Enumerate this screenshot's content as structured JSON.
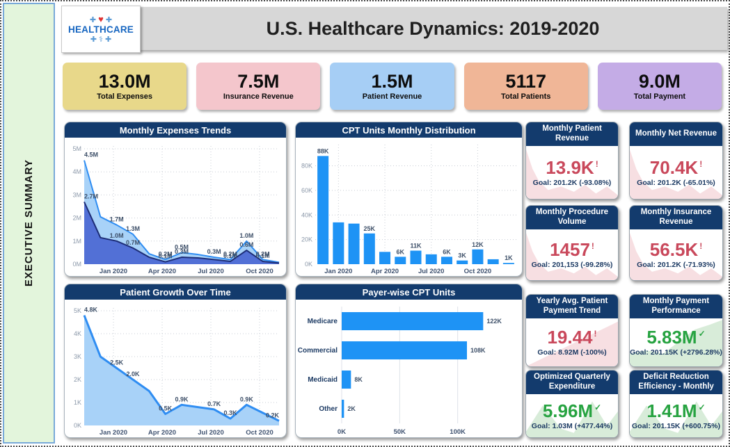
{
  "sidebar": {
    "label": "EXECUTIVE SUMMARY"
  },
  "header": {
    "title": "U.S. Healthcare Dynamics: 2019-2020",
    "logo": {
      "text": "HEALTHCARE",
      "icons_top_left": "✚",
      "icon_heart": "♥",
      "icons_top_right": "✚",
      "icons_bottom": "✚ ⚕ ✚"
    }
  },
  "kpi_cards": [
    {
      "value": "13.0M",
      "label": "Total Expenses",
      "color": "#e8d88a"
    },
    {
      "value": "7.5M",
      "label": "Insurance Revenue",
      "color": "#f4c6cc"
    },
    {
      "value": "1.5M",
      "label": "Patient Revenue",
      "color": "#a6cef5"
    },
    {
      "value": "5117",
      "label": "Total Patients",
      "color": "#f0b697"
    },
    {
      "value": "9.0M",
      "label": "Total Payment",
      "color": "#c4ace6"
    }
  ],
  "goal_cards": [
    {
      "title": "Monthly Patient Revenue",
      "value": "13.9K",
      "status": "!",
      "goal": "Goal: 201.2K (-93.08%)",
      "tone": "bad",
      "spark": "decay"
    },
    {
      "title": "Monthly Net Revenue",
      "value": "70.4K",
      "status": "!",
      "goal": "Goal: 201.2K (-65.01%)",
      "tone": "bad",
      "spark": "decay"
    },
    {
      "title": "Monthly Procedure Volume",
      "value": "1457",
      "status": "!",
      "goal": "Goal: 201,153 (-99.28%)",
      "tone": "bad",
      "spark": "decay"
    },
    {
      "title": "Monthly Insurance Revenue",
      "value": "56.5K",
      "status": "!",
      "goal": "Goal: 201.2K (-71.93%)",
      "tone": "bad",
      "spark": "decay"
    },
    {
      "title": "Yearly Avg. Patient Payment Trend",
      "value": "19.44",
      "status": "!",
      "goal": "Goal: 8.92M (-100%)",
      "tone": "bad",
      "spark": "rise-triangle"
    },
    {
      "title": "Monthly Payment Performance",
      "value": "5.83M",
      "status": "✓",
      "goal": "Goal: 201.15K (+2796.28%)",
      "tone": "good",
      "spark": "rise"
    },
    {
      "title": "Optimized Quarterly Expenditure",
      "value": "5.96M",
      "status": "✓",
      "goal": "Goal: 1.03M (+477.44%)",
      "tone": "good",
      "spark": "mountain"
    },
    {
      "title": "Deficit Reduction Efficiency - Monthly",
      "value": "1.41M",
      "status": "✓",
      "goal": "Goal: 201.15K (+600.75%)",
      "tone": "good",
      "spark": "mountain"
    }
  ],
  "chart_data": [
    {
      "type": "area",
      "title": "Monthly Expenses Trends",
      "x": [
        "Dec 2019",
        "Jan 2020",
        "Feb 2020",
        "Mar 2020",
        "Apr 2020",
        "May 2020",
        "Jun 2020",
        "Jul 2020",
        "Aug 2020",
        "Sep 2020",
        "Oct 2020",
        "Nov 2020",
        "Dec 2020"
      ],
      "xticks": [
        {
          "pos": 1.8,
          "label": "Jan 2020"
        },
        {
          "pos": 4.8,
          "label": "Apr 2020"
        },
        {
          "pos": 7.8,
          "label": "Jul 2020"
        },
        {
          "pos": 10.8,
          "label": "Oct 2020"
        }
      ],
      "ylim": [
        0,
        5
      ],
      "yticks": [
        {
          "v": 0,
          "label": "0M"
        },
        {
          "v": 1,
          "label": "1M"
        },
        {
          "v": 2,
          "label": "2M"
        },
        {
          "v": 3,
          "label": "3M"
        },
        {
          "v": 4,
          "label": "4M"
        },
        {
          "v": 5,
          "label": "5M"
        }
      ],
      "series": [
        {
          "name": "light-blue",
          "fill": "#a8d2f8",
          "line": "#2f8df2",
          "width": 2,
          "values": [
            4.5,
            2.05,
            1.7,
            1.3,
            0.45,
            0.2,
            0.5,
            0.42,
            0.3,
            0.2,
            1.0,
            0.2,
            0.08
          ],
          "labels": [
            "4.5M",
            null,
            "1.7M",
            "1.3M",
            null,
            "0.2M",
            "0.5M",
            null,
            "0.3M",
            "0.2M",
            "1.0M",
            "0.2M",
            null
          ]
        },
        {
          "name": "dark-blue",
          "fill": "#5270d6",
          "line": "#1d2d76",
          "width": 2,
          "values": [
            2.7,
            1.15,
            1.0,
            0.7,
            0.3,
            0.1,
            0.3,
            0.27,
            0.2,
            0.12,
            0.6,
            0.12,
            0.05
          ],
          "labels": [
            "2.7M",
            null,
            "1.0M",
            "0.7M",
            null,
            "0.1M",
            "0.3M",
            null,
            null,
            "0.1M",
            "0.6M",
            "0.1M",
            null
          ]
        }
      ]
    },
    {
      "type": "bar",
      "title": "CPT Units Monthly Distribution",
      "x": [
        "Dec 2019",
        "Jan 2020",
        "Feb 2020",
        "Mar 2020",
        "Apr 2020",
        "May 2020",
        "Jun 2020",
        "Jul 2020",
        "Aug 2020",
        "Sep 2020",
        "Oct 2020",
        "Nov 2020",
        "Dec 2020"
      ],
      "xticks": [
        {
          "pos": 1,
          "label": "Jan 2020"
        },
        {
          "pos": 4,
          "label": "Apr 2020"
        },
        {
          "pos": 7,
          "label": "Jul 2020"
        },
        {
          "pos": 10,
          "label": "Oct 2020"
        }
      ],
      "values": [
        88,
        34,
        33,
        25,
        10,
        6,
        11,
        8,
        6,
        3,
        12,
        4,
        1
      ],
      "labels": [
        "88K",
        null,
        null,
        "25K",
        null,
        "6K",
        "11K",
        null,
        "6K",
        "3K",
        "12K",
        null,
        "1K"
      ],
      "ylim": [
        0,
        95
      ],
      "yticks": [
        {
          "v": 0,
          "label": "0K"
        },
        {
          "v": 20,
          "label": "20K"
        },
        {
          "v": 40,
          "label": "40K"
        },
        {
          "v": 60,
          "label": "60K"
        },
        {
          "v": 80,
          "label": "80K"
        }
      ],
      "bar_color": "#1e93f5"
    },
    {
      "type": "area",
      "title": "Patient Growth Over Time",
      "x": [
        "Dec 2019",
        "Jan 2020",
        "Feb 2020",
        "Mar 2020",
        "Apr 2020",
        "May 2020",
        "Jun 2020",
        "Jul 2020",
        "Aug 2020",
        "Sep 2020",
        "Oct 2020",
        "Nov 2020",
        "Dec 2020"
      ],
      "xticks": [
        {
          "pos": 1.8,
          "label": "Jan 2020"
        },
        {
          "pos": 4.8,
          "label": "Apr 2020"
        },
        {
          "pos": 7.8,
          "label": "Jul 2020"
        },
        {
          "pos": 10.8,
          "label": "Oct 2020"
        }
      ],
      "ylim": [
        0,
        5
      ],
      "yticks": [
        {
          "v": 0,
          "label": "0K"
        },
        {
          "v": 1,
          "label": "1K"
        },
        {
          "v": 2,
          "label": "2K"
        },
        {
          "v": 3,
          "label": "3K"
        },
        {
          "v": 4,
          "label": "4K"
        },
        {
          "v": 5,
          "label": "5K"
        }
      ],
      "series": [
        {
          "name": "patients",
          "fill": "#a8d2f8",
          "line": "#2f8df2",
          "width": 3,
          "values": [
            4.8,
            3.0,
            2.5,
            2.0,
            1.5,
            0.5,
            0.9,
            0.8,
            0.7,
            0.3,
            0.9,
            0.55,
            0.2
          ],
          "labels": [
            "4.8K",
            null,
            "2.5K",
            "2.0K",
            null,
            "0.5K",
            "0.9K",
            null,
            "0.7K",
            "0.3K",
            "0.9K",
            null,
            "0.2K"
          ]
        }
      ]
    },
    {
      "type": "hbar",
      "title": "Payer-wise CPT Units",
      "categories": [
        "Medicare",
        "Commercial",
        "Medicaid",
        "Other"
      ],
      "values": [
        122,
        108,
        8,
        2
      ],
      "labels": [
        "122K",
        "108K",
        "8K",
        "2K"
      ],
      "xlim": [
        0,
        135
      ],
      "xticks": [
        {
          "v": 0,
          "label": "0K"
        },
        {
          "v": 50,
          "label": "50K"
        },
        {
          "v": 100,
          "label": "100K"
        }
      ],
      "bar_color": "#1e93f5"
    }
  ],
  "colors": {
    "navy_header": "#133b6d",
    "chart_blue": "#1e93f5",
    "area_light_fill": "#a8d2f8",
    "area_light_line": "#2f8df2",
    "area_dark_fill": "#5270d6",
    "area_dark_line": "#1d2d76",
    "bad_value": "#c9485b",
    "good_value": "#27a341",
    "spark_bad": "#f7dfe2",
    "spark_good": "#d8ecd9",
    "sidebar_green": "#e3f5dc",
    "banner_gray": "#d7d7d7"
  }
}
